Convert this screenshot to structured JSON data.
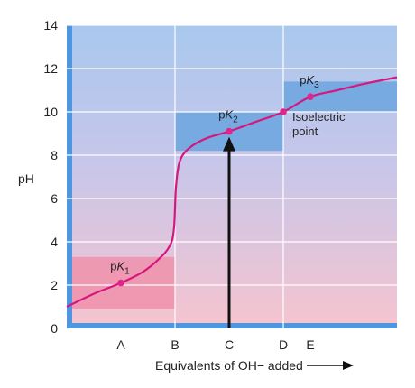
{
  "chart_data": {
    "type": "line",
    "title": "",
    "xlabel": "Equivalents of OH− added",
    "ylabel": "pH",
    "ylim": [
      0,
      14
    ],
    "xlim": [
      0,
      6.1
    ],
    "y_ticks": [
      0,
      2,
      4,
      6,
      8,
      10,
      12,
      14
    ],
    "x_tick_labels": [
      {
        "label": "A",
        "x": 1
      },
      {
        "label": "B",
        "x": 2
      },
      {
        "label": "C",
        "x": 3
      },
      {
        "label": "D",
        "x": 4
      },
      {
        "label": "E",
        "x": 4.5
      }
    ],
    "series": [
      {
        "points": [
          [
            0,
            1.0
          ],
          [
            0.5,
            1.6
          ],
          [
            1.0,
            2.1
          ],
          [
            1.4,
            2.6
          ],
          [
            1.7,
            3.2
          ],
          [
            1.9,
            3.8
          ],
          [
            1.98,
            4.6
          ],
          [
            2.02,
            6.6
          ],
          [
            2.1,
            7.8
          ],
          [
            2.3,
            8.4
          ],
          [
            2.6,
            8.8
          ],
          [
            3.0,
            9.1
          ],
          [
            3.5,
            9.55
          ],
          [
            4.0,
            10.0
          ],
          [
            4.5,
            10.7
          ],
          [
            5.0,
            11.0
          ],
          [
            5.5,
            11.3
          ],
          [
            6.1,
            11.6
          ]
        ]
      }
    ],
    "key_points": [
      {
        "label_prefix": "p",
        "label_k": "K",
        "label_sub": "1",
        "x": 1.0,
        "y": 2.1
      },
      {
        "label_prefix": "p",
        "label_k": "K",
        "label_sub": "2",
        "x": 3.0,
        "y": 9.1
      },
      {
        "label_prefix": "p",
        "label_k": "K",
        "label_sub": "3",
        "x": 4.5,
        "y": 10.7
      }
    ],
    "buffer_regions": [
      {
        "x0": 0,
        "x1": 2,
        "y0": 0.9,
        "y1": 3.3
      },
      {
        "x0": 2,
        "x1": 4,
        "y0": 8.2,
        "y1": 10.0
      },
      {
        "x0": 4,
        "x1": 6.1,
        "y0": 10.0,
        "y1": 11.4
      }
    ],
    "isoelectric_point": {
      "x": 4.0,
      "y": 10.0,
      "label_line1": "Isoelectric",
      "label_line2": "point"
    },
    "arrow": {
      "x": 3.0,
      "y_from": 0,
      "y_to": 9.1
    },
    "grid": true,
    "colors": {
      "curve": "#d6177f",
      "point": "#e0268b",
      "buffer_low": "#f090ab",
      "buffer_high": "#6fa6e0",
      "bg_top": "#a9c8ee",
      "bg_bottom": "#f6c4cf",
      "axis_band": "#4f96e0",
      "arrow": "#111111"
    }
  }
}
